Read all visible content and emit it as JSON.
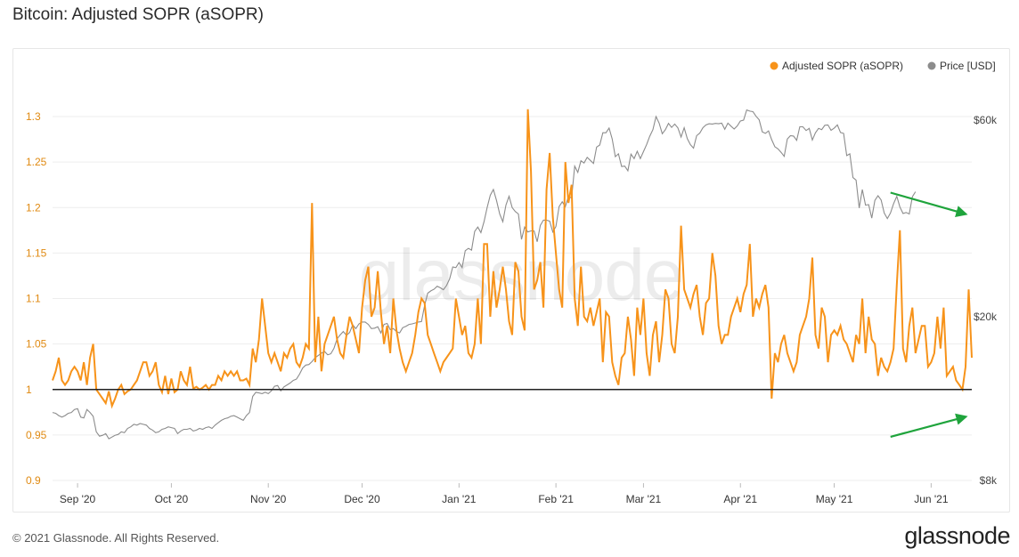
{
  "title": "Bitcoin: Adjusted SOPR (aSOPR)",
  "footer": {
    "copyright": "© 2021 Glassnode. All Rights Reserved.",
    "brand": "glassnode"
  },
  "watermark": "glassnode",
  "colors": {
    "asopr": "#f7931a",
    "price": "#8c8c8c",
    "baseline": "#222222",
    "annotation": "#1fa43c",
    "left_axis": "#e08a12",
    "grid": "#ededed"
  },
  "chart_data": {
    "type": "line",
    "legend_position": "top-right",
    "grid": true,
    "series": [
      {
        "name": "Adjusted SOPR (aSOPR)",
        "axis": "left",
        "x_start": "2020-08-24",
        "x_step_days": 1,
        "values": [
          1.01,
          1.02,
          1.035,
          1.01,
          1.005,
          1.01,
          1.02,
          1.025,
          1.02,
          1.01,
          1.03,
          1.005,
          1.035,
          1.05,
          1.0,
          0.995,
          0.99,
          0.985,
          0.998,
          0.982,
          0.99,
          1.0,
          1.005,
          0.995,
          0.998,
          1.0,
          1.005,
          1.01,
          1.02,
          1.03,
          1.03,
          1.015,
          1.02,
          1.03,
          1.005,
          0.997,
          1.015,
          0.995,
          1.012,
          0.997,
          1.0,
          1.02,
          1.01,
          1.005,
          1.025,
          1.001,
          1.003,
          1.0,
          1.002,
          1.005,
          1.0,
          1.005,
          1.005,
          1.015,
          1.01,
          1.02,
          1.015,
          1.02,
          1.015,
          1.02,
          1.01,
          1.01,
          1.012,
          1.005,
          1.045,
          1.03,
          1.055,
          1.1,
          1.07,
          1.04,
          1.03,
          1.04,
          1.03,
          1.02,
          1.04,
          1.035,
          1.045,
          1.05,
          1.03,
          1.025,
          1.035,
          1.05,
          1.045,
          1.205,
          1.03,
          1.08,
          1.02,
          1.05,
          1.06,
          1.07,
          1.08,
          1.055,
          1.04,
          1.035,
          1.06,
          1.08,
          1.07,
          1.055,
          1.04,
          1.09,
          1.12,
          1.135,
          1.08,
          1.09,
          1.13,
          1.085,
          1.05,
          1.07,
          1.04,
          1.1,
          1.065,
          1.045,
          1.03,
          1.02,
          1.03,
          1.04,
          1.06,
          1.085,
          1.1,
          1.095,
          1.06,
          1.05,
          1.04,
          1.03,
          1.02,
          1.03,
          1.035,
          1.04,
          1.045,
          1.1,
          1.08,
          1.06,
          1.07,
          1.04,
          1.035,
          1.05,
          1.1,
          1.05,
          1.16,
          1.16,
          1.08,
          1.13,
          1.09,
          1.11,
          1.135,
          1.11,
          1.075,
          1.06,
          1.14,
          1.13,
          1.08,
          1.065,
          1.308,
          1.24,
          1.11,
          1.12,
          1.14,
          1.09,
          1.22,
          1.26,
          1.19,
          1.15,
          1.11,
          1.09,
          1.25,
          1.205,
          1.225,
          1.1,
          1.07,
          1.135,
          1.08,
          1.075,
          1.09,
          1.07,
          1.085,
          1.1,
          1.03,
          1.085,
          1.08,
          1.03,
          1.015,
          1.005,
          1.035,
          1.04,
          1.08,
          1.055,
          1.015,
          1.09,
          1.06,
          1.1,
          1.04,
          1.015,
          1.06,
          1.075,
          1.03,
          1.06,
          1.11,
          1.1,
          1.05,
          1.04,
          1.08,
          1.18,
          1.11,
          1.1,
          1.09,
          1.105,
          1.115,
          1.08,
          1.06,
          1.095,
          1.1,
          1.15,
          1.125,
          1.07,
          1.05,
          1.06,
          1.06,
          1.08,
          1.09,
          1.1,
          1.085,
          1.105,
          1.115,
          1.16,
          1.08,
          1.1,
          1.09,
          1.105,
          1.115,
          1.09,
          0.99,
          1.04,
          1.03,
          1.05,
          1.06,
          1.04,
          1.03,
          1.02,
          1.03,
          1.06,
          1.07,
          1.08,
          1.1,
          1.145,
          1.06,
          1.045,
          1.09,
          1.08,
          1.03,
          1.06,
          1.065,
          1.06,
          1.07,
          1.055,
          1.05,
          1.04,
          1.03,
          1.06,
          1.05,
          1.1,
          1.04,
          1.08,
          1.055,
          1.05,
          1.015,
          1.035,
          1.025,
          1.02,
          1.03,
          1.045,
          1.115,
          1.175,
          1.045,
          1.03,
          1.07,
          1.09,
          1.04,
          1.055,
          1.07,
          1.07,
          1.025,
          1.03,
          1.04,
          1.08,
          1.045,
          1.09,
          1.015,
          1.02,
          1.025,
          1.01,
          1.005,
          1.0,
          1.025,
          1.11,
          1.035,
          1.01,
          1.03,
          1.035,
          1.03,
          1.015,
          1.01,
          1.005,
          1.01,
          1.035,
          1.01,
          1.0,
          1.045,
          1.035,
          1.01,
          1.065,
          1.025,
          1.03,
          1.02,
          1.03,
          1.04,
          1.0,
          1.02,
          1.01,
          1.015,
          1.025,
          1.04,
          1.105,
          1.035,
          1.015,
          1.035,
          1.055,
          1.03,
          1.01,
          1.0,
          1.02,
          1.045,
          1.035,
          1.02,
          0.98,
          0.985,
          1.01,
          1.0,
          0.99,
          0.97,
          0.948,
          0.98,
          0.99,
          1.02,
          1.005,
          1.015,
          0.985,
          0.98,
          0.99,
          0.97,
          1.0,
          1.025,
          1.03,
          0.985,
          0.975,
          1.005,
          0.995,
          1.02,
          0.985,
          0.99,
          1.0,
          1.01,
          1.005,
          0.995,
          0.985,
          0.98,
          1.005,
          1.01,
          0.985,
          0.995,
          1.03,
          1.0,
          1.01,
          0.975,
          0.98,
          1.02,
          0.988,
          0.982,
          0.965,
          0.975,
          1.015,
          0.99,
          0.97,
          0.98,
          1.0,
          0.975,
          0.985,
          1.01,
          0.99,
          0.975,
          0.995,
          1.005,
          0.985,
          0.96,
          0.99,
          1.01,
          1.0,
          0.985,
          0.995,
          1.0,
          0.985,
          0.99,
          1.0,
          0.998,
          0.98,
          0.985,
          0.99,
          0.99,
          0.99,
          0.98,
          0.975,
          0.99,
          1.005,
          0.99,
          0.98,
          0.995,
          0.985,
          0.99,
          0.993,
          0.989,
          0.975,
          0.99,
          0.99,
          0.994,
          0.985,
          0.99,
          1.0,
          0.992,
          0.98,
          0.97,
          0.96,
          0.99,
          1.005,
          1.0,
          0.99,
          0.985,
          0.99,
          0.995,
          1.0,
          0.997,
          0.975,
          0.99,
          0.988,
          0.99,
          0.99,
          0.99,
          0.985,
          0.99,
          0.99,
          0.99,
          0.995,
          0.99,
          0.99,
          0.985,
          0.992,
          0.975,
          0.99,
          0.995,
          0.99,
          0.982,
          0.99,
          0.99,
          0.992,
          0.985,
          0.99,
          0.99,
          0.985,
          0.99,
          0.99,
          0.99,
          0.988,
          0.995,
          0.99,
          0.985,
          0.99,
          0.99,
          0.99,
          0.985,
          0.99,
          0.99,
          0.99,
          0.99,
          0.987,
          0.99,
          0.995,
          0.99,
          0.99,
          0.985,
          0.99,
          0.99,
          0.99,
          0.98,
          0.99,
          0.99,
          0.99,
          0.985,
          0.99,
          0.99,
          0.99,
          0.99,
          0.985,
          0.99,
          0.99,
          0.99,
          0.99,
          0.99,
          0.985,
          0.99,
          0.99,
          0.99,
          0.99,
          0.985,
          0.99,
          0.99,
          0.99,
          0.99,
          0.99,
          0.99,
          0.985,
          0.99,
          0.99,
          0.99,
          0.99,
          0.99,
          0.99,
          0.985,
          0.99,
          0.99,
          0.99,
          0.99,
          0.99,
          0.985,
          0.99,
          0.99,
          0.99,
          0.99,
          0.99,
          0.99,
          0.99,
          0.985,
          0.99,
          0.99,
          0.99,
          0.99,
          0.99,
          0.99,
          0.99,
          0.99,
          0.985,
          0.99,
          0.99,
          0.99,
          0.99,
          0.99,
          0.99,
          0.99,
          0.99,
          0.99,
          0.99,
          0.99,
          0.99,
          0.99,
          0.99,
          0.99,
          0.99,
          0.99,
          0.99,
          0.99,
          0.99
        ]
      },
      {
        "name": "Price [USD]",
        "axis": "right",
        "scale": "log",
        "x_start": "2020-08-24",
        "x_step_days": 1,
        "values": [
          11700,
          11650,
          11500,
          11400,
          11500,
          11650,
          11700,
          11900,
          11950,
          11400,
          11350,
          11900,
          11700,
          11450,
          10500,
          10250,
          10300,
          10400,
          10100,
          10200,
          10300,
          10350,
          10500,
          10450,
          10700,
          10800,
          10950,
          10900,
          11000,
          10950,
          10900,
          10700,
          10600,
          10450,
          10500,
          10650,
          10700,
          10800,
          10750,
          10700,
          10400,
          10550,
          10650,
          10650,
          10700,
          10550,
          10600,
          10700,
          10650,
          10750,
          10800,
          10700,
          10900,
          11050,
          11200,
          11300,
          11350,
          11450,
          11500,
          11400,
          11300,
          11200,
          11500,
          11700,
          12800,
          13100,
          13050,
          13000,
          13100,
          13000,
          13200,
          13550,
          13600,
          13200,
          13500,
          13650,
          13800,
          14000,
          14100,
          14500,
          15000,
          15250,
          15300,
          15550,
          15900,
          16100,
          16300,
          16450,
          16150,
          16250,
          16750,
          17650,
          18050,
          18400,
          18000,
          18300,
          19100,
          18700,
          19200,
          19400,
          19400,
          19150,
          18700,
          18750,
          18900,
          18250,
          19150,
          19250,
          18600,
          18700,
          18400,
          18250,
          18800,
          18950,
          19150,
          19200,
          19300,
          19400,
          19450,
          21300,
          22800,
          23100,
          23300,
          23700,
          23500,
          23250,
          23800,
          24700,
          26400,
          26300,
          27050,
          26300,
          28900,
          29300,
          29000,
          32200,
          33000,
          32000,
          34000,
          36800,
          39400,
          40700,
          38300,
          35500,
          34000,
          37300,
          39200,
          36800,
          36000,
          35500,
          30800,
          33000,
          32100,
          32300,
          32300,
          30400,
          33300,
          34300,
          34300,
          34100,
          32100,
          33100,
          37000,
          38000,
          37000,
          39200,
          38800,
          46400,
          44800,
          47800,
          47200,
          48700,
          47900,
          47100,
          51600,
          52200,
          55900,
          55900,
          57400,
          54000,
          48900,
          49700,
          46300,
          46400,
          45200,
          49600,
          48400,
          50400,
          48400,
          50300,
          52300,
          54800,
          56900,
          61200,
          59000,
          55600,
          56900,
          58900,
          57600,
          58700,
          57500,
          54600,
          57500,
          54100,
          52300,
          51300,
          55000,
          55800,
          57500,
          58400,
          58800,
          58700,
          58900,
          58800,
          59000,
          57000,
          59000,
          58000,
          57100,
          58100,
          59700,
          60000,
          63500,
          63100,
          62900,
          61300,
          60100,
          56200,
          55700,
          56500,
          53800,
          51700,
          51100,
          50100,
          49000,
          54000,
          55000,
          54900,
          53600,
          57800,
          57800,
          56600,
          57300,
          53700,
          55900,
          57300,
          56900,
          58300,
          58400,
          56700,
          57400,
          58400,
          56000,
          55700,
          49200,
          49700,
          43500,
          42900,
          36700,
          40700,
          37300,
          37400,
          34700,
          38300,
          39300,
          38400,
          35700,
          34600,
          35700,
          37600,
          39200,
          36900,
          35600,
          35800,
          35500,
          39100,
          40200
        ]
      }
    ],
    "x_range": [
      "2020-08-24",
      "2021-06-14"
    ],
    "x_ticks": [
      "Sep '20",
      "Oct '20",
      "Nov '20",
      "Dec '20",
      "Jan '21",
      "Feb '21",
      "Mar '21",
      "Apr '21",
      "May '21",
      "Jun '21"
    ],
    "x_tick_dates": [
      "2020-09-01",
      "2020-10-01",
      "2020-11-01",
      "2020-12-01",
      "2021-01-01",
      "2021-02-01",
      "2021-03-01",
      "2021-04-01",
      "2021-05-01",
      "2021-06-01"
    ],
    "y_left": {
      "ticks": [
        "0.9",
        "0.95",
        "1",
        "1.05",
        "1.1",
        "1.15",
        "1.2",
        "1.25",
        "1.3"
      ],
      "range": [
        0.9,
        1.3
      ]
    },
    "y_right": {
      "ticks": [
        "$8k",
        "$20k",
        "$60k"
      ],
      "tick_values": [
        8000,
        20000,
        60000
      ],
      "scale": "log",
      "range": [
        8000,
        60000
      ]
    },
    "reference_line": {
      "axis": "left",
      "value": 1
    },
    "annotations": [
      {
        "kind": "arrow",
        "color": "green",
        "series": "Price [USD]",
        "from": [
          "2021-05-19",
          40000
        ],
        "to": [
          "2021-06-12",
          35500
        ],
        "meaning": "lower low in price"
      },
      {
        "kind": "arrow",
        "color": "green",
        "series": "Adjusted SOPR (aSOPR)",
        "from": [
          "2021-05-19",
          0.948
        ],
        "to": [
          "2021-06-12",
          0.97
        ],
        "meaning": "higher low in aSOPR"
      }
    ]
  }
}
